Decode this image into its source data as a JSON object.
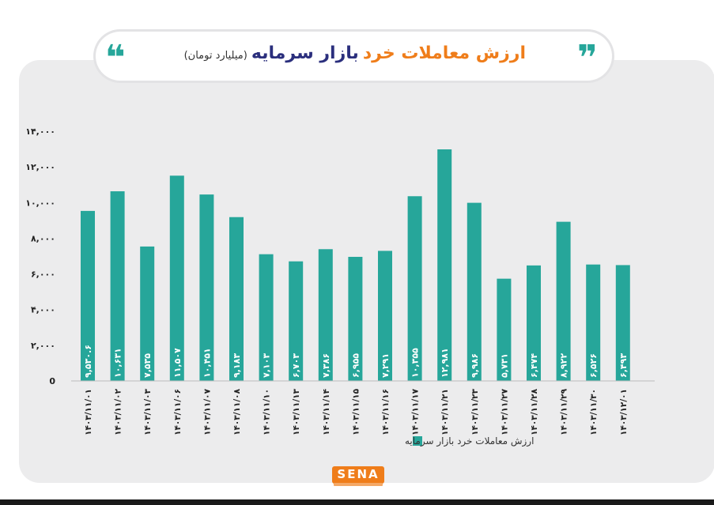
{
  "header": {
    "title_part1": "ارزش معاملات خرد",
    "title_part2": "بازار سرمایه",
    "unit": "(میلیارد تومان)",
    "quote_left": "❝",
    "quote_right": "❞"
  },
  "logo": {
    "text": "SENA"
  },
  "chart_data": {
    "type": "bar",
    "title": "ارزش معاملات خرد بازار سرمایه",
    "ylabel": "",
    "xlabel": "",
    "ylim": [
      0,
      14000
    ],
    "yticks": [
      "0",
      "۲,۰۰۰",
      "۴,۰۰۰",
      "۶,۰۰۰",
      "۸,۰۰۰",
      "۱۰,۰۰۰",
      "۱۲,۰۰۰",
      "۱۴,۰۰۰"
    ],
    "categories": [
      "۱۴۰۳/۱۱/۰۱",
      "۱۴۰۳/۱۱/۰۲",
      "۱۴۰۳/۱۱/۰۳",
      "۱۴۰۳/۱۱/۰۶",
      "۱۴۰۳/۱۱/۰۷",
      "۱۴۰۳/۱۱/۰۸",
      "۱۴۰۳/۱۱/۱۰",
      "۱۴۰۳/۱۱/۱۳",
      "۱۴۰۳/۱۱/۱۴",
      "۱۴۰۳/۱۱/۱۵",
      "۱۴۰۳/۱۱/۱۶",
      "۱۴۰۳/۱۱/۱۷",
      "۱۴۰۳/۱۱/۲۱",
      "۱۴۰۳/۱۱/۲۳",
      "۱۴۰۳/۱۱/۲۷",
      "۱۴۰۳/۱۱/۲۸",
      "۱۴۰۳/۱۱/۲۹",
      "۱۴۰۳/۱۱/۳۰",
      "۱۴۰۳/۱۲/۰۱"
    ],
    "values": [
      9530.6,
      10631,
      7535,
      11507,
      10451,
      9183,
      7103,
      6703,
      7386,
      6955,
      7291,
      10355,
      12981,
      9986,
      5731,
      6474,
      8922,
      6526,
      6493
    ],
    "value_labels": [
      "۹,۵۳۰.۶",
      "۱۰,۶۳۱",
      "۷,۵۳۵",
      "۱۱,۵۰۷",
      "۱۰,۴۵۱",
      "۹,۱۸۳",
      "۷,۱۰۳",
      "۶,۷۰۳",
      "۷,۳۸۶",
      "۶,۹۵۵",
      "۷,۲۹۱",
      "۱۰,۳۵۵",
      "۱۲,۹۸۱",
      "۹,۹۸۶",
      "۵,۷۳۱",
      "۶,۴۷۴",
      "۸,۹۲۲",
      "۶,۵۲۶",
      "۶,۴۹۳"
    ],
    "series": [
      {
        "name": "ارزش معاملات خرد بازار سرمایه",
        "color": "#26a69a"
      }
    ],
    "legend_position": "bottom",
    "grid": false
  }
}
